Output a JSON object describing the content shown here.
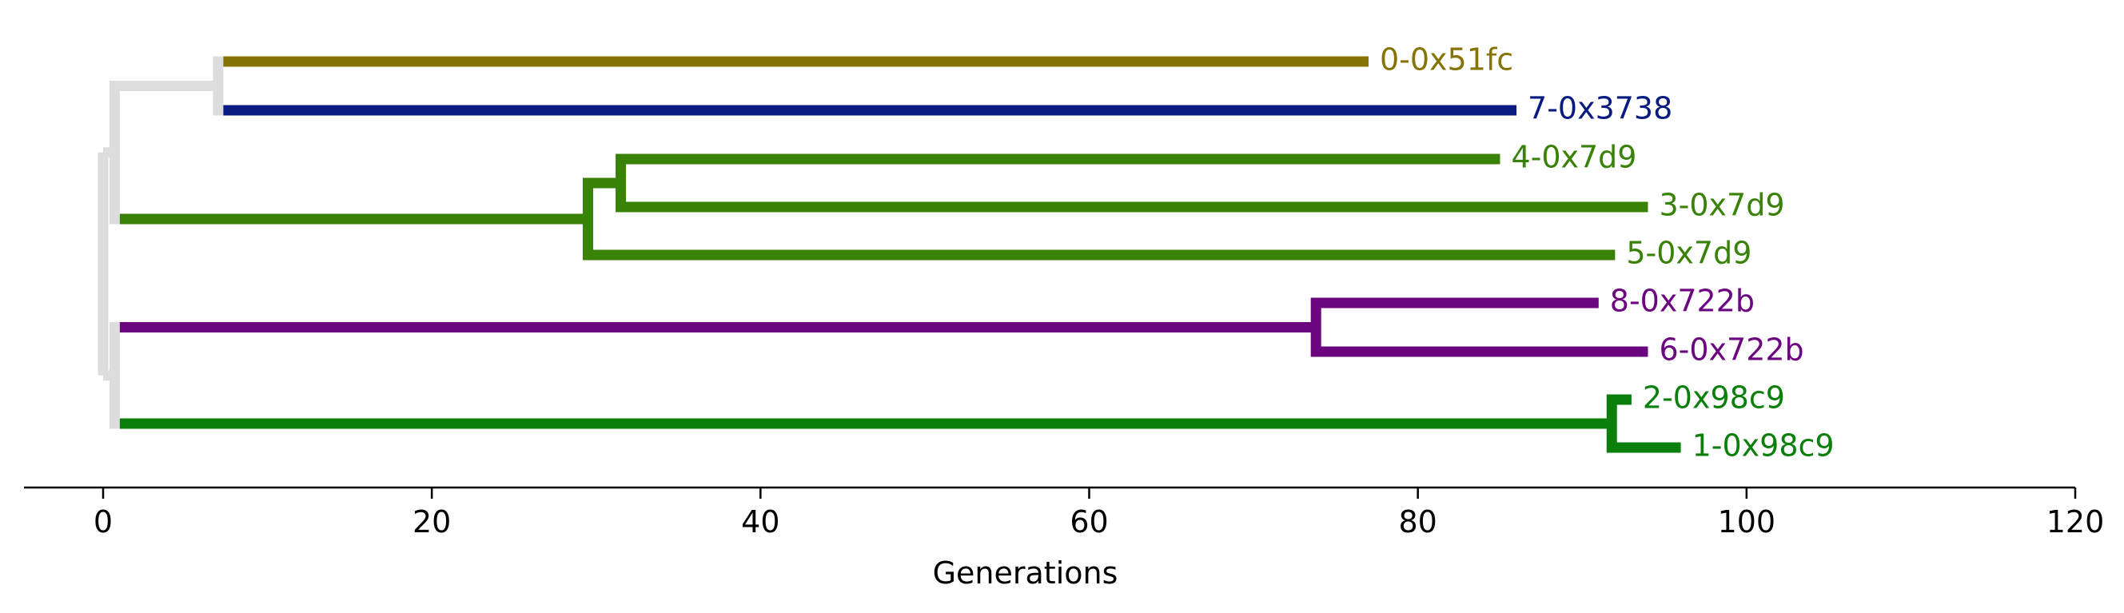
{
  "chart_data": {
    "type": "dendrogram",
    "xlabel": "Generations",
    "xlim": [
      0,
      120
    ],
    "xticks": [
      0,
      20,
      40,
      60,
      80,
      100,
      120
    ],
    "grid": false,
    "background_color": "#dddddd",
    "leaves": [
      {
        "label": "0-0x51fc",
        "end": 77,
        "color": "#857405"
      },
      {
        "label": "7-0x3738",
        "end": 86,
        "color": "#071b80"
      },
      {
        "label": "4-0x7d9",
        "end": 85,
        "color": "#388207"
      },
      {
        "label": "3-0x7d9",
        "end": 94,
        "color": "#388207"
      },
      {
        "label": "5-0x7d9",
        "end": 92,
        "color": "#388207"
      },
      {
        "label": "8-0x722b",
        "end": 91,
        "color": "#6c0580"
      },
      {
        "label": "6-0x722b",
        "end": 94,
        "color": "#6c0580"
      },
      {
        "label": "2-0x98c9",
        "end": 93,
        "color": "#0b7f0b"
      },
      {
        "label": "1-0x98c9",
        "end": 96,
        "color": "#0b7f0b"
      }
    ],
    "clades": [
      {
        "split": 0,
        "color": "#dddddd",
        "children": [
          {
            "split": 0.7,
            "color": "#dddddd",
            "children": [
              {
                "split": 7,
                "color": "#dddddd",
                "children": [
                  0,
                  1
                ]
              },
              {
                "split": 29.5,
                "color": "#388207",
                "children": [
                  {
                    "split": 31.5,
                    "color": "#388207",
                    "children": [
                      2,
                      3
                    ]
                  },
                  4
                ]
              }
            ]
          },
          {
            "split": 0.7,
            "color": "#dddddd",
            "children": [
              {
                "split": 73.8,
                "color": "#6c0580",
                "children": [
                  5,
                  6
                ]
              },
              {
                "split": 91.8,
                "color": "#0b7f0b",
                "children": [
                  7,
                  8
                ]
              }
            ]
          }
        ]
      }
    ]
  }
}
